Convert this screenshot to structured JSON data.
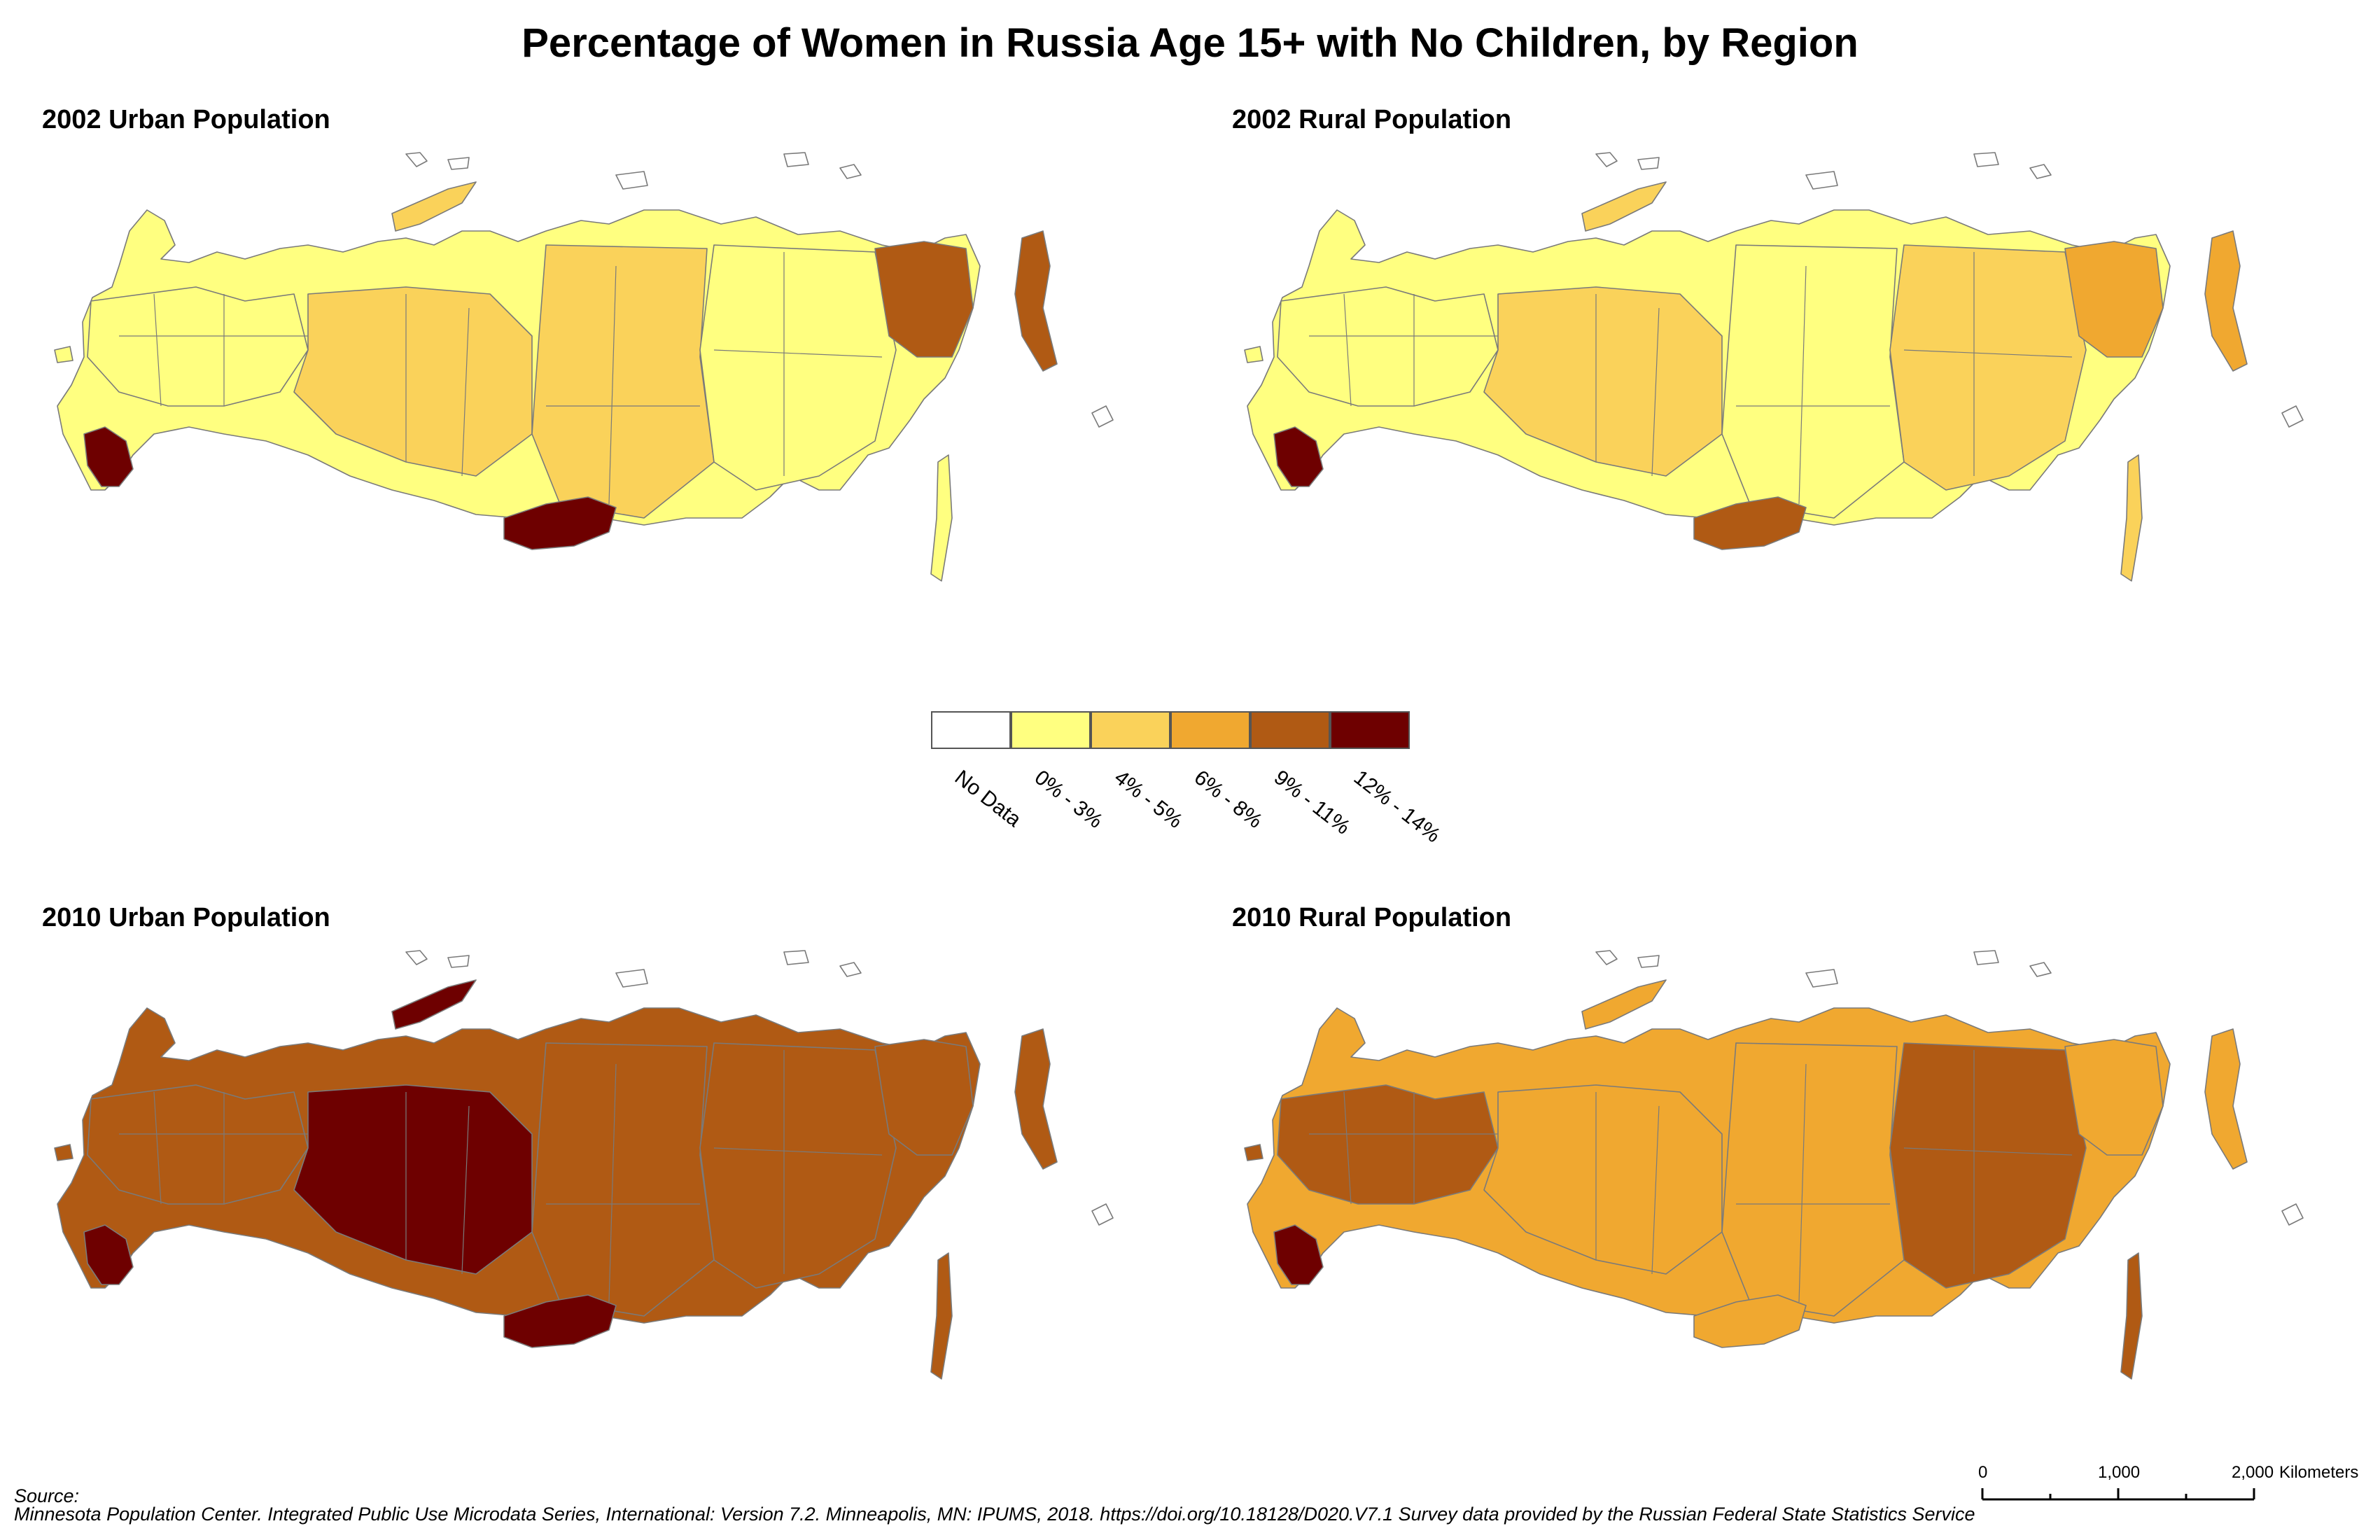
{
  "title": "Percentage of Women in Russia Age 15+ with No Children, by Region",
  "colors": {
    "no_data": "#ffffff",
    "c1": "#ffff80",
    "c2": "#fad25a",
    "c3": "#f0a830",
    "c4": "#b05a14",
    "c5": "#6e0000",
    "border": "#7a7a7a"
  },
  "legend": {
    "items": [
      {
        "label": "No Data",
        "color_key": "no_data"
      },
      {
        "label": "0% - 3%",
        "color_key": "c1"
      },
      {
        "label": "4% - 5%",
        "color_key": "c2"
      },
      {
        "label": "6% - 8%",
        "color_key": "c3"
      },
      {
        "label": "9% - 11%",
        "color_key": "c4"
      },
      {
        "label": "12% - 14%",
        "color_key": "c5"
      }
    ]
  },
  "panels": [
    {
      "title": "2002 Urban Population",
      "base": "c1",
      "west": "c1",
      "center": "c2",
      "siberia": "c2",
      "east": "c1",
      "far_east": "c4",
      "south": "c5",
      "caucasus": "c5"
    },
    {
      "title": "2002 Rural Population",
      "base": "c1",
      "west": "c1",
      "center": "c2",
      "siberia": "c1",
      "east": "c2",
      "far_east": "c3",
      "south": "c4",
      "caucasus": "c5"
    },
    {
      "title": "2010 Urban Population",
      "base": "c4",
      "west": "c4",
      "center": "c5",
      "siberia": "c4",
      "east": "c4",
      "far_east": "c4",
      "south": "c5",
      "caucasus": "c5"
    },
    {
      "title": "2010 Rural Population",
      "base": "c3",
      "west": "c4",
      "center": "c3",
      "siberia": "c3",
      "east": "c4",
      "far_east": "c3",
      "south": "c3",
      "caucasus": "c5"
    }
  ],
  "source": {
    "heading": "Source:",
    "text": "Minnesota Population Center. Integrated Public Use Microdata Series, International: Version 7.2. Minneapolis, MN: IPUMS, 2018. https://doi.org/10.18128/D020.V7.1 Survey data provided by the Russian Federal State Statistics Service"
  },
  "scale_bar": {
    "labels": [
      "0",
      "1,000",
      "2,000"
    ],
    "unit": "Kilometers"
  }
}
